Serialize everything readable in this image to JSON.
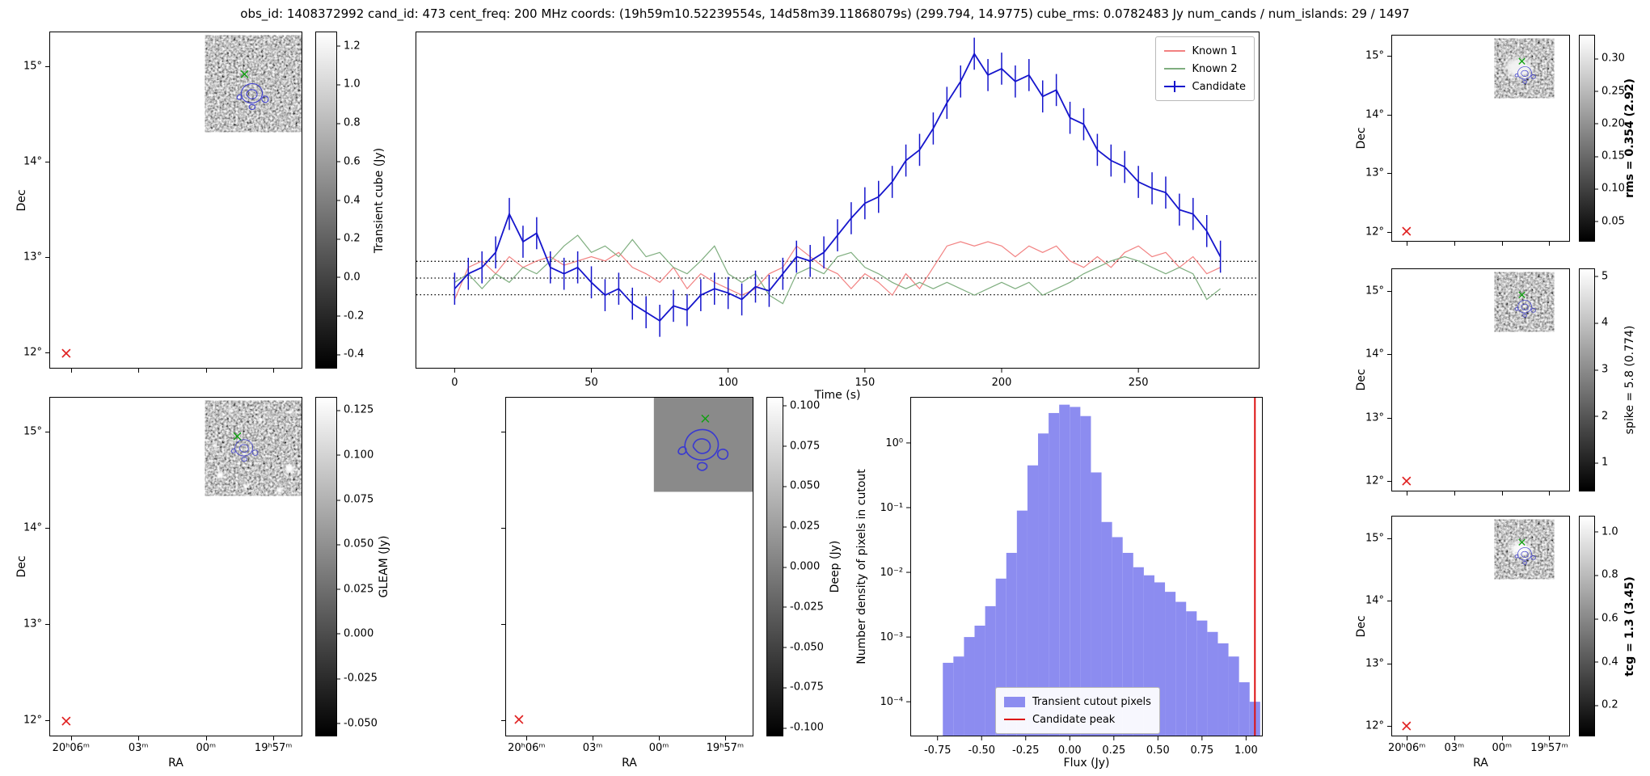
{
  "title": "obs_id: 1408372992 cand_id: 473 cent_freq: 200 MHz coords: (19h59m10.52239554s, 14d58m39.11868079s) (299.794, 14.9775) cube_rms: 0.0782483 Jy num_cands / num_islands: 29 / 1497",
  "axes": {
    "ra_label": "RA",
    "dec_label": "Dec",
    "ra_ticks": [
      "20ʰ06ᵐ",
      "03ᵐ",
      "00ᵐ",
      "19ʰ57ᵐ"
    ],
    "dec_ticks": [
      "15°",
      "14°",
      "13°",
      "12°"
    ]
  },
  "markers": {
    "catalog_color": "#0fa00f",
    "reference_color": "#e02020",
    "contour_color": "#3a3ad0"
  },
  "colorbars": {
    "transient": {
      "label": "Transient cube (Jy)",
      "ticks": [
        "1.2",
        "1.0",
        "0.8",
        "0.6",
        "0.4",
        "0.2",
        "0.0",
        "-0.2",
        "-0.4"
      ],
      "vmin": -0.47,
      "vmax": 1.27
    },
    "gleam": {
      "label": "GLEAM (Jy)",
      "ticks": [
        "0.125",
        "0.100",
        "0.075",
        "0.050",
        "0.025",
        "0.000",
        "-0.025",
        "-0.050"
      ],
      "vmin": -0.057,
      "vmax": 0.132
    },
    "deep": {
      "label": "Deep (Jy)",
      "ticks": [
        "0.100",
        "0.075",
        "0.050",
        "0.025",
        "0.000",
        "-0.025",
        "-0.050",
        "-0.075",
        "-0.100"
      ],
      "vmin": -0.105,
      "vmax": 0.105
    },
    "rms": {
      "label": "rms = 0.354 (2.92)",
      "ticks": [
        "0.30",
        "0.25",
        "0.20",
        "0.15",
        "0.10",
        "0.05"
      ],
      "vmin": 0.02,
      "vmax": 0.335
    },
    "spike": {
      "label": "spike = 5.8 (0.774)",
      "ticks": [
        "5",
        "4",
        "3",
        "2",
        "1"
      ],
      "vmin": 0.4,
      "vmax": 5.15
    },
    "tcg": {
      "label": "tcg = 1.3 (3.45)",
      "ticks": [
        "1.0",
        "0.8",
        "0.6",
        "0.4",
        "0.2"
      ],
      "vmin": 0.06,
      "vmax": 1.07
    }
  },
  "chart_data": [
    {
      "type": "line",
      "title": "",
      "xlabel": "Time (s)",
      "ylabel": "",
      "xlim": [
        -14,
        294
      ],
      "ylim": [
        -0.42,
        1.15
      ],
      "xticks": [
        0,
        50,
        100,
        150,
        200,
        250
      ],
      "xtick_labels": [
        "0",
        "50",
        "100",
        "150",
        "200",
        "250"
      ],
      "hlines": [
        0.0782,
        0,
        -0.0782
      ],
      "legend_position": "upper right",
      "x": [
        0,
        5,
        10,
        15,
        20,
        25,
        30,
        35,
        40,
        45,
        50,
        55,
        60,
        65,
        70,
        75,
        80,
        85,
        90,
        95,
        100,
        105,
        110,
        115,
        120,
        125,
        130,
        135,
        140,
        145,
        150,
        155,
        160,
        165,
        170,
        175,
        180,
        185,
        190,
        195,
        200,
        205,
        210,
        215,
        220,
        225,
        230,
        235,
        240,
        245,
        250,
        255,
        260,
        265,
        270,
        275,
        280
      ],
      "series": [
        {
          "name": "Known 1",
          "color": "#f28181",
          "values": [
            -0.1,
            0.05,
            0.08,
            0.02,
            0.1,
            0.05,
            0.08,
            0.1,
            0.06,
            0.08,
            0.1,
            0.08,
            0.12,
            0.05,
            0.02,
            -0.02,
            0.05,
            -0.05,
            0.02,
            -0.02,
            -0.05,
            -0.08,
            -0.05,
            0.02,
            0.05,
            0.15,
            0.1,
            0.05,
            0.02,
            -0.05,
            0.02,
            -0.02,
            -0.08,
            0.02,
            -0.05,
            0.05,
            0.15,
            0.17,
            0.15,
            0.17,
            0.15,
            0.1,
            0.15,
            0.12,
            0.15,
            0.08,
            0.05,
            0.1,
            0.05,
            0.12,
            0.15,
            0.1,
            0.12,
            0.05,
            0.1,
            0.02,
            0.05
          ]
        },
        {
          "name": "Known 2",
          "color": "#7fae7f",
          "values": [
            -0.02,
            0.02,
            -0.05,
            0.02,
            -0.02,
            0.05,
            0.02,
            0.08,
            0.15,
            0.2,
            0.12,
            0.15,
            0.1,
            0.18,
            0.1,
            0.12,
            0.05,
            0.02,
            0.08,
            0.15,
            0.02,
            -0.02,
            0.02,
            -0.08,
            -0.12,
            0.02,
            0.05,
            0.02,
            0.1,
            0.12,
            0.05,
            0.02,
            -0.02,
            -0.05,
            -0.02,
            -0.05,
            -0.02,
            -0.05,
            -0.08,
            -0.05,
            -0.02,
            -0.05,
            -0.02,
            -0.08,
            -0.05,
            -0.02,
            0.02,
            0.05,
            0.08,
            0.1,
            0.08,
            0.05,
            0.02,
            0.05,
            0.02,
            -0.1,
            -0.05
          ]
        },
        {
          "name": "Candidate",
          "color": "#1515cc",
          "error": 0.075,
          "values": [
            -0.05,
            0.02,
            0.05,
            0.12,
            0.3,
            0.17,
            0.21,
            0.05,
            0.02,
            0.05,
            -0.02,
            -0.08,
            -0.05,
            -0.12,
            -0.16,
            -0.2,
            -0.13,
            -0.15,
            -0.08,
            -0.05,
            -0.07,
            -0.1,
            -0.04,
            -0.06,
            0.02,
            0.1,
            0.08,
            0.12,
            0.2,
            0.28,
            0.35,
            0.38,
            0.45,
            0.55,
            0.6,
            0.7,
            0.82,
            0.92,
            1.05,
            0.95,
            0.98,
            0.92,
            0.95,
            0.85,
            0.88,
            0.75,
            0.72,
            0.6,
            0.55,
            0.52,
            0.45,
            0.42,
            0.4,
            0.32,
            0.3,
            0.22,
            0.1
          ]
        }
      ]
    },
    {
      "type": "bar",
      "title": "",
      "xlabel": "Flux (Jy)",
      "ylabel": "Number density of pixels in cutout",
      "yscale": "log",
      "xlim": [
        -0.9,
        1.09
      ],
      "ylim": [
        3e-05,
        5
      ],
      "xticks": [
        -0.75,
        -0.5,
        -0.25,
        0,
        0.25,
        0.5,
        0.75,
        1.0
      ],
      "xtick_labels": [
        "-0.75",
        "-0.50",
        "-0.25",
        "0.00",
        "0.25",
        "0.50",
        "0.75",
        "1.00"
      ],
      "ytick_values": [
        1,
        0.1,
        0.01,
        0.001,
        0.0001
      ],
      "ytick_labels": [
        "10⁰",
        "10⁻¹",
        "10⁻²",
        "10⁻³",
        "10⁻⁴"
      ],
      "bar_color": "#8c8cf0",
      "peak_color": "#dd1111",
      "bin_width": 0.06,
      "bin_left_edges": [
        -0.72,
        -0.66,
        -0.6,
        -0.54,
        -0.48,
        -0.42,
        -0.36,
        -0.3,
        -0.24,
        -0.18,
        -0.12,
        -0.06,
        0.0,
        0.06,
        0.12,
        0.18,
        0.24,
        0.3,
        0.36,
        0.42,
        0.48,
        0.54,
        0.6,
        0.66,
        0.72,
        0.78,
        0.84,
        0.9,
        0.96,
        1.02
      ],
      "densities": [
        0.0004,
        0.0005,
        0.001,
        0.0015,
        0.003,
        0.008,
        0.02,
        0.09,
        0.45,
        1.4,
        2.9,
        3.9,
        3.6,
        2.6,
        0.35,
        0.06,
        0.035,
        0.02,
        0.012,
        0.009,
        0.007,
        0.005,
        0.0035,
        0.0025,
        0.0018,
        0.0012,
        0.0008,
        0.0005,
        0.0002,
        0.0001
      ],
      "candidate_peak": 1.05,
      "legend": [
        "Transient cutout pixels",
        "Candidate peak"
      ]
    }
  ]
}
